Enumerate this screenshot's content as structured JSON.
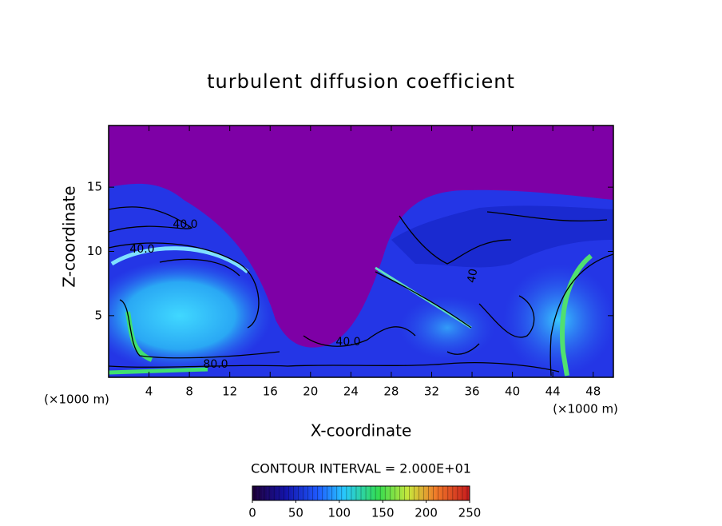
{
  "chart_data": {
    "type": "contour",
    "title": "turbulent diffusion coefficient",
    "x_label": "X-coordinate",
    "y_label": "Z-coordinate",
    "x_unit_label": "(×1000 m)",
    "xlim": [
      0,
      50
    ],
    "ylim": [
      0.2,
      19.8
    ],
    "xticks": [
      4,
      8,
      12,
      16,
      20,
      24,
      28,
      32,
      36,
      40,
      44,
      48
    ],
    "yticks": [
      5,
      10,
      15
    ],
    "contour_labels": [
      "40.0",
      "40.0",
      "80.0",
      "40.0",
      "40"
    ],
    "contour_interval_text": "CONTOUR INTERVAL = 2.000E+01",
    "colorbar": {
      "lim": [
        0,
        250
      ],
      "ticks": [
        0,
        50,
        100,
        150,
        200,
        250
      ]
    }
  }
}
